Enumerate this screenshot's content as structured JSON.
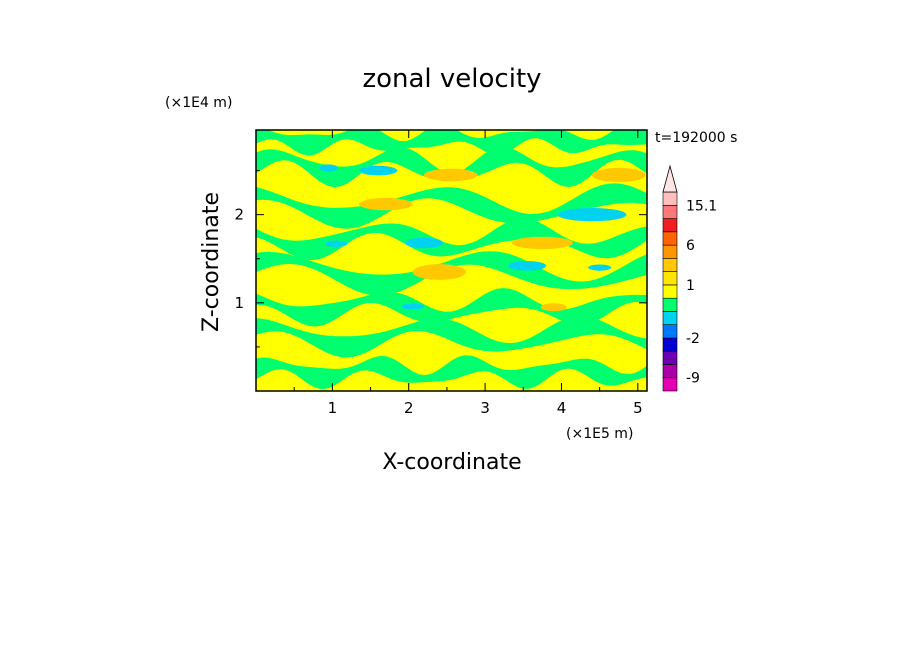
{
  "chart_data": {
    "type": "heatmap",
    "title": "zonal velocity",
    "xlabel": "X-coordinate",
    "ylabel": "Z-coordinate",
    "x_unit": "(×1E5 m)",
    "y_unit": "(×1E4 m)",
    "time_label": "t=192000 s",
    "xlim": [
      0,
      5.12
    ],
    "ylim": [
      0,
      2.96
    ],
    "x_ticks": [
      1,
      2,
      3,
      4,
      5
    ],
    "y_ticks": [
      1,
      2
    ],
    "colorbar": {
      "levels": [
        -12,
        -9,
        -6,
        -4,
        -2,
        -1,
        -0.5,
        0.5,
        1,
        2,
        4,
        6,
        9,
        12,
        15.1
      ],
      "colors": [
        "#e600b4",
        "#aa00aa",
        "#6e00b4",
        "#0000d2",
        "#0078ff",
        "#00d2f0",
        "#00ff6e",
        "#ffff00",
        "#ffe600",
        "#ffc800",
        "#ff9600",
        "#ff6400",
        "#f01e1e",
        "#ff7878",
        "#ffbebe",
        "#ffe6e6"
      ],
      "labels": [
        {
          "value": 15.1,
          "text": "15.1"
        },
        {
          "value": 6,
          "text": "6"
        },
        {
          "value": 1,
          "text": "1"
        },
        {
          "value": -2,
          "text": "-2"
        },
        {
          "value": -9,
          "text": "-9"
        }
      ]
    },
    "bands": [
      {
        "z": 0.22,
        "amp": 0.08,
        "wl": 1.3,
        "ph": 0.4,
        "level": "green"
      },
      {
        "z": 0.62,
        "amp": 0.12,
        "wl": 2.1,
        "ph": 1.2,
        "level": "green"
      },
      {
        "z": 0.95,
        "amp": 0.1,
        "wl": 1.7,
        "ph": 2.0,
        "level": "green"
      },
      {
        "z": 1.35,
        "amp": 0.15,
        "wl": 2.6,
        "ph": 0.8,
        "level": "green"
      },
      {
        "z": 1.72,
        "amp": 0.12,
        "wl": 1.9,
        "ph": 2.5,
        "level": "green"
      },
      {
        "z": 2.1,
        "amp": 0.14,
        "wl": 2.4,
        "ph": 1.7,
        "level": "green"
      },
      {
        "z": 2.55,
        "amp": 0.12,
        "wl": 1.5,
        "ph": 0.3,
        "level": "green"
      },
      {
        "z": 2.85,
        "amp": 0.06,
        "wl": 1.2,
        "ph": 1.1,
        "level": "green"
      }
    ],
    "blobs": [
      {
        "x": 3.9,
        "z": 0.95,
        "rx": 0.17,
        "rz": 0.045,
        "color": "orange"
      },
      {
        "x": 2.4,
        "z": 1.35,
        "rx": 0.35,
        "rz": 0.09,
        "color": "orange"
      },
      {
        "x": 3.75,
        "z": 1.68,
        "rx": 0.4,
        "rz": 0.07,
        "color": "orange"
      },
      {
        "x": 1.7,
        "z": 2.12,
        "rx": 0.35,
        "rz": 0.07,
        "color": "orange"
      },
      {
        "x": 4.75,
        "z": 2.45,
        "rx": 0.35,
        "rz": 0.08,
        "color": "orange"
      },
      {
        "x": 2.55,
        "z": 2.45,
        "rx": 0.35,
        "rz": 0.07,
        "color": "orange"
      },
      {
        "x": 4.4,
        "z": 2.0,
        "rx": 0.45,
        "rz": 0.075,
        "color": "cyan"
      },
      {
        "x": 2.2,
        "z": 1.68,
        "rx": 0.25,
        "rz": 0.06,
        "color": "cyan"
      },
      {
        "x": 3.55,
        "z": 1.42,
        "rx": 0.25,
        "rz": 0.055,
        "color": "cyan"
      },
      {
        "x": 1.6,
        "z": 2.5,
        "rx": 0.25,
        "rz": 0.055,
        "color": "cyan"
      },
      {
        "x": 0.95,
        "z": 2.53,
        "rx": 0.12,
        "rz": 0.04,
        "color": "cyan"
      },
      {
        "x": 2.05,
        "z": 0.96,
        "rx": 0.15,
        "rz": 0.035,
        "color": "cyan"
      },
      {
        "x": 1.05,
        "z": 1.67,
        "rx": 0.15,
        "rz": 0.035,
        "color": "cyan"
      },
      {
        "x": 4.5,
        "z": 1.4,
        "rx": 0.15,
        "rz": 0.035,
        "color": "cyan"
      }
    ]
  }
}
